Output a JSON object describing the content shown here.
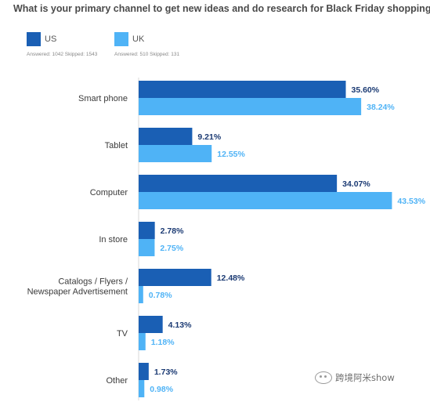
{
  "colors": {
    "us": "#1a5fb4",
    "uk": "#4fb3f6",
    "us_label": "#1b3a73",
    "uk_label": "#4fb3f6",
    "category_text": "#3a3a3a"
  },
  "legend": [
    {
      "name": "US",
      "stat": "Answered: 1042  Skipped: 1543",
      "color": "#1a5fb4"
    },
    {
      "name": "UK",
      "stat": "Answered: 510  Skipped: 131",
      "color": "#4fb3f6"
    }
  ],
  "watermark": {
    "text": "跨境阿米show",
    "icon": "wechat-icon"
  },
  "chart_data": {
    "type": "bar",
    "orientation": "horizontal",
    "title": "What is your primary channel to get new ideas and do research for Black Friday shopping?",
    "categories": [
      "Smart phone",
      "Tablet",
      "Computer",
      "In store",
      "Catalogs / Flyers / Newspaper Advertisement",
      "TV",
      "Other"
    ],
    "category_lines": [
      [
        "Smart phone"
      ],
      [
        "Tablet"
      ],
      [
        "Computer"
      ],
      [
        "In store"
      ],
      [
        "Catalogs / Flyers /",
        "Newspaper Advertisement"
      ],
      [
        "TV"
      ],
      [
        "Other"
      ]
    ],
    "series": [
      {
        "name": "US",
        "values": [
          35.6,
          9.21,
          34.07,
          2.78,
          12.48,
          4.13,
          1.73
        ],
        "labels": [
          "35.60%",
          "9.21%",
          "34.07%",
          "2.78%",
          "12.48%",
          "4.13%",
          "1.73%"
        ]
      },
      {
        "name": "UK",
        "values": [
          38.24,
          12.55,
          43.53,
          2.75,
          0.78,
          1.18,
          0.98
        ],
        "labels": [
          "38.24%",
          "12.55%",
          "43.53%",
          "2.75%",
          "0.78%",
          "1.18%",
          "0.98%"
        ]
      }
    ],
    "xlim": [
      0,
      50
    ],
    "grid": false,
    "legend_position": "top-left"
  }
}
